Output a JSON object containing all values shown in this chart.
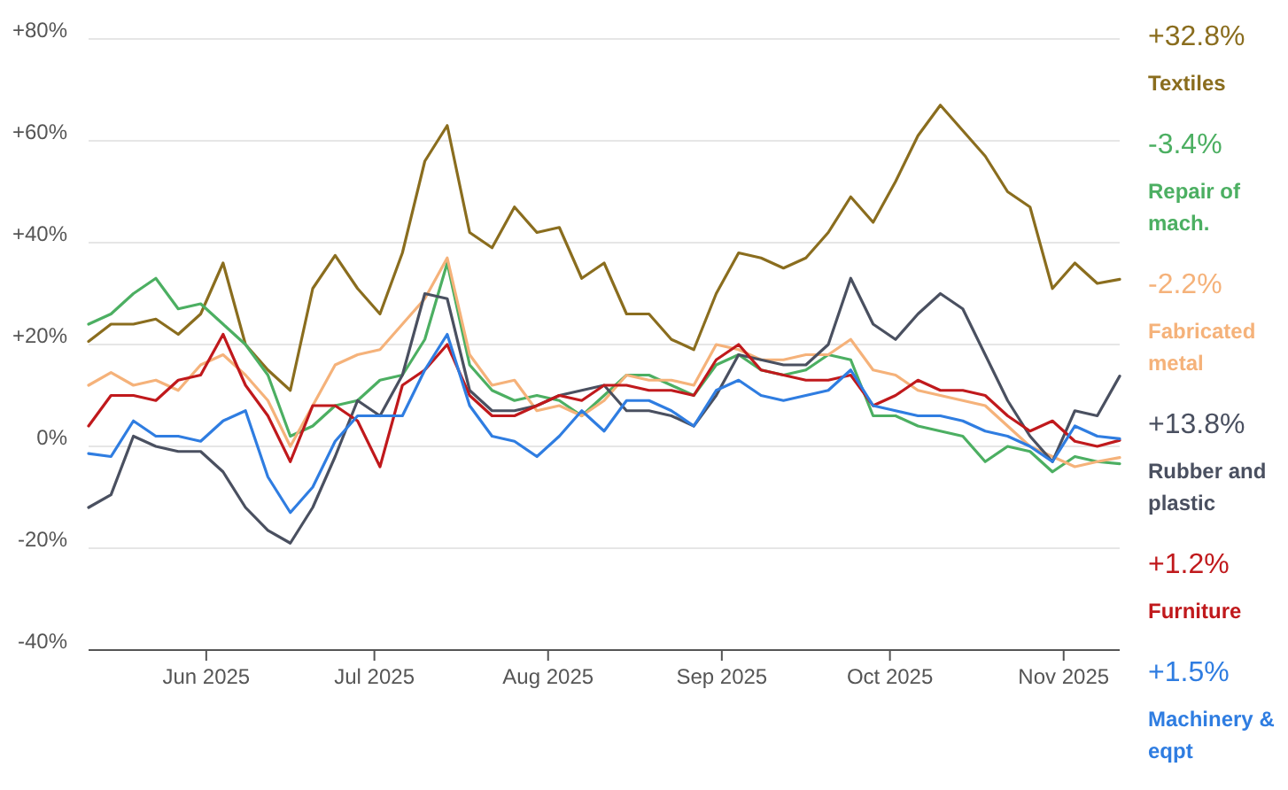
{
  "chart_data": {
    "type": "line",
    "x": [
      "2025-05-11",
      "2025-05-15",
      "2025-05-19",
      "2025-05-23",
      "2025-05-27",
      "2025-05-31",
      "2025-06-04",
      "2025-06-08",
      "2025-06-12",
      "2025-06-16",
      "2025-06-20",
      "2025-06-24",
      "2025-06-28",
      "2025-07-02",
      "2025-07-06",
      "2025-07-10",
      "2025-07-14",
      "2025-07-18",
      "2025-07-22",
      "2025-07-26",
      "2025-07-30",
      "2025-08-03",
      "2025-08-07",
      "2025-08-11",
      "2025-08-15",
      "2025-08-19",
      "2025-08-23",
      "2025-08-27",
      "2025-08-31",
      "2025-09-04",
      "2025-09-08",
      "2025-09-12",
      "2025-09-16",
      "2025-09-20",
      "2025-09-24",
      "2025-09-28",
      "2025-10-02",
      "2025-10-06",
      "2025-10-10",
      "2025-10-14",
      "2025-10-18",
      "2025-10-22",
      "2025-10-26",
      "2025-10-30",
      "2025-11-03",
      "2025-11-07",
      "2025-11-11"
    ],
    "series": [
      {
        "name": "Textiles",
        "color": "#8a6d1e",
        "values": [
          20.6,
          24,
          24,
          25,
          22,
          26,
          36,
          20,
          15,
          11,
          31,
          37.5,
          31,
          26,
          38,
          56,
          63,
          42,
          39,
          47,
          42,
          43,
          33,
          36,
          26,
          26,
          21,
          19,
          30,
          38,
          37,
          35,
          37,
          42,
          49,
          44,
          52,
          61,
          67,
          62,
          57,
          50,
          47,
          31,
          36,
          32,
          32.8
        ]
      },
      {
        "name": "Repair of mach.",
        "color": "#4caf62",
        "values": [
          24,
          26,
          30,
          33,
          27,
          28,
          24,
          20,
          14,
          2,
          4,
          8,
          9,
          13,
          14,
          21,
          36,
          16,
          11,
          9,
          10,
          9,
          6,
          10,
          14,
          14,
          12,
          10,
          16,
          18,
          15,
          14,
          15,
          18,
          17,
          6,
          6,
          4,
          3,
          2,
          -3,
          0,
          -1,
          -5,
          -2,
          -3,
          -3.4
        ]
      },
      {
        "name": "Fabricated metal",
        "color": "#f5b27a",
        "values": [
          12,
          14.5,
          12,
          13,
          11,
          16,
          18,
          14,
          9,
          0,
          8,
          16,
          18,
          19,
          24,
          29,
          37,
          18,
          12,
          13,
          7,
          8,
          6,
          9,
          14,
          13,
          13,
          12,
          20,
          19,
          17,
          17,
          18,
          18,
          21,
          15,
          14,
          11,
          10,
          9,
          8,
          4,
          0,
          -2,
          -4,
          -3,
          -2.2
        ]
      },
      {
        "name": "Rubber and plastic",
        "color": "#4a5060",
        "values": [
          -12,
          -9.5,
          2,
          0,
          -1,
          -1,
          -5,
          -12,
          -16.5,
          -19,
          -12,
          -2,
          9,
          6,
          14,
          30,
          29,
          11,
          7,
          7,
          8,
          10,
          11,
          12,
          7,
          7,
          6,
          4,
          10,
          18,
          17,
          16,
          16,
          20,
          33,
          24,
          21,
          26,
          30,
          27,
          18,
          9,
          2,
          -3,
          7,
          6,
          13.8
        ]
      },
      {
        "name": "Furniture",
        "color": "#c0191c",
        "values": [
          4,
          10,
          10,
          9,
          13,
          14,
          22,
          12,
          6,
          -3,
          8,
          8,
          5,
          -4,
          12,
          15,
          20,
          10,
          6,
          6,
          8,
          10,
          9,
          12,
          12,
          11,
          11,
          10,
          17,
          20,
          15,
          14,
          13,
          13,
          14,
          8,
          10,
          13,
          11,
          11,
          10,
          6,
          3,
          5,
          1,
          0,
          1.2
        ]
      },
      {
        "name": "Machinery & eqpt",
        "color": "#2f7de1",
        "values": [
          -1.4,
          -2,
          5,
          2,
          2,
          1,
          5,
          7,
          -6,
          -13,
          -8,
          1,
          6,
          6,
          6,
          15,
          22,
          8,
          2,
          1,
          -2,
          2,
          7,
          3,
          9,
          9,
          7,
          4,
          11,
          13,
          10,
          9,
          10,
          11,
          15,
          8,
          7,
          6,
          6,
          5,
          3,
          2,
          0,
          -3,
          4,
          2,
          1.5
        ]
      }
    ],
    "xlim": [
      "2025-05-11",
      "2025-11-11"
    ],
    "xticks": [
      {
        "value": "2025-06-01",
        "label": "Jun 2025"
      },
      {
        "value": "2025-07-01",
        "label": "Jul 2025"
      },
      {
        "value": "2025-08-01",
        "label": "Aug 2025"
      },
      {
        "value": "2025-09-01",
        "label": "Sep 2025"
      },
      {
        "value": "2025-10-01",
        "label": "Oct 2025"
      },
      {
        "value": "2025-11-01",
        "label": "Nov 2025"
      }
    ],
    "ylim": [
      -40,
      80
    ],
    "yticks": [
      {
        "value": -40,
        "label": "-40%"
      },
      {
        "value": -20,
        "label": "-20%"
      },
      {
        "value": 0,
        "label": "0%"
      },
      {
        "value": 20,
        "label": "+20%"
      },
      {
        "value": 40,
        "label": "+40%"
      },
      {
        "value": 60,
        "label": "+60%"
      },
      {
        "value": 80,
        "label": "+80%"
      }
    ],
    "annotations": [
      "+32.8%",
      "-3.4%",
      "-2.2%",
      "+13.8%",
      "+1.2%",
      "+1.5%"
    ],
    "grid": "y",
    "legend": "right",
    "line_style": "solid"
  }
}
